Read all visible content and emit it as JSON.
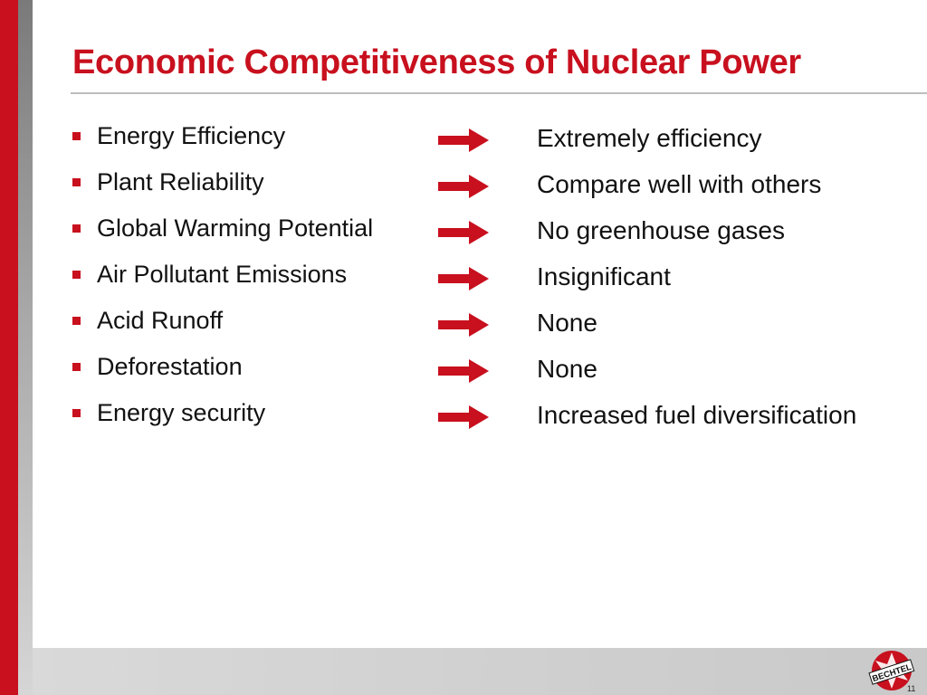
{
  "slide": {
    "title": "Economic Competitiveness of Nuclear Power",
    "rows": [
      {
        "item": "Energy Efficiency",
        "result": "Extremely efficiency"
      },
      {
        "item": "Plant Reliability",
        "result": "Compare well with others"
      },
      {
        "item": "Global Warming Potential",
        "result": "No greenhouse gases"
      },
      {
        "item": "Air Pollutant Emissions",
        "result": "Insignificant"
      },
      {
        "item": "Acid Runoff",
        "result": "None"
      },
      {
        "item": "Deforestation",
        "result": "None"
      },
      {
        "item": "Energy security",
        "result": "Increased fuel diversification"
      }
    ],
    "page_number": "11",
    "logo_text": "BECHTEL",
    "icons": {
      "bullet": "square-bullet-icon",
      "arrow": "right-arrow-icon"
    },
    "colors": {
      "accent": "#c8101e",
      "text": "#111111",
      "rule": "#bdbdbd"
    }
  }
}
